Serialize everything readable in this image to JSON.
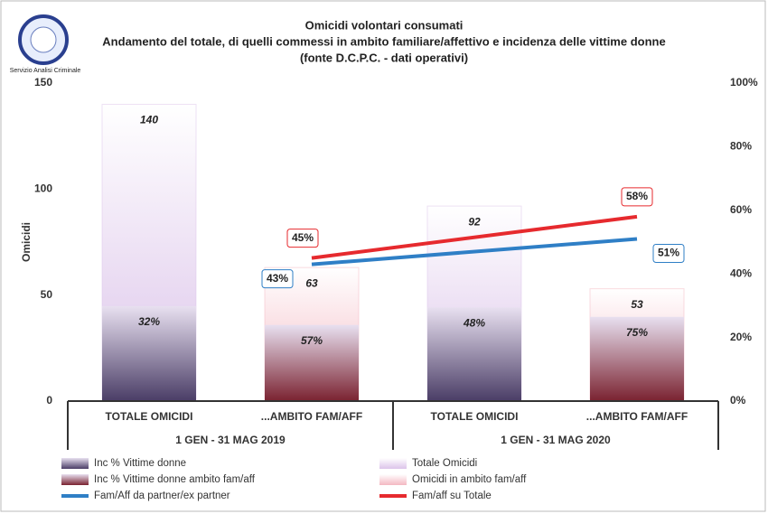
{
  "chart_data": {
    "type": "bar",
    "title": "Omicidi volontari consumati",
    "subtitle": "Andamento del totale, di quelli commessi in ambito familiare/affettivo e incidenza delle vittime donne",
    "source": "(fonte D.C.P.C. - dati operativi)",
    "logo_caption": "Servizio Analisi Criminale",
    "y_label": "Omicidi",
    "categories": [
      "TOTALE OMICIDI",
      "...AMBITO FAM/AFF",
      "TOTALE OMICIDI",
      "...AMBITO FAM/AFF"
    ],
    "groups": [
      "1 GEN - 31 MAG 2019",
      "1 GEN - 31 MAG 2020"
    ],
    "ylim": [
      0,
      150
    ],
    "yticks": [
      0,
      50,
      100,
      150
    ],
    "y2lim": [
      0,
      100
    ],
    "y2ticks": [
      {
        "value": 0,
        "label": "0%"
      },
      {
        "value": 20,
        "label": "20%"
      },
      {
        "value": 40,
        "label": "40%"
      },
      {
        "value": 60,
        "label": "60%"
      },
      {
        "value": 80,
        "label": "80%"
      },
      {
        "value": 100,
        "label": "100%"
      }
    ],
    "series": [
      {
        "name": "Inc % Vittime donne",
        "kind": "share",
        "color": "#4a3d66",
        "values": [
          32,
          null,
          48,
          null
        ],
        "value_labels": [
          "32%",
          null,
          "48%",
          null
        ]
      },
      {
        "name": "Inc % Vittime donne ambito fam/aff",
        "kind": "share",
        "color": "#7a2230",
        "values": [
          null,
          57,
          null,
          75
        ],
        "value_labels": [
          null,
          "57%",
          null,
          "75%"
        ]
      },
      {
        "name": "Fam/Aff da partner/ex partner",
        "kind": "line",
        "axis": "y2",
        "color": "#2f7fc6",
        "values": [
          null,
          43,
          null,
          51
        ],
        "value_labels": [
          null,
          "43%",
          null,
          "51%"
        ]
      },
      {
        "name": "Totale Omicidi",
        "kind": "bar",
        "color": "#dcc4ea",
        "values": [
          140,
          null,
          92,
          null
        ]
      },
      {
        "name": "Omicidi in ambito fam/aff",
        "kind": "bar",
        "color": "#f4b8c2",
        "values": [
          null,
          63,
          null,
          53
        ]
      },
      {
        "name": "Fam/aff su Totale",
        "kind": "line",
        "axis": "y2",
        "color": "#e62a2e",
        "values": [
          null,
          45,
          null,
          58
        ],
        "value_labels": [
          null,
          "45%",
          null,
          "58%"
        ]
      }
    ]
  }
}
